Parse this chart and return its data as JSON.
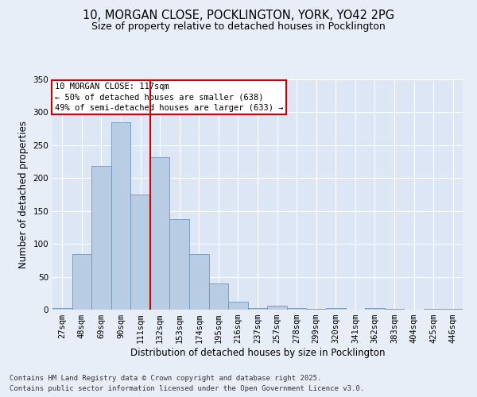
{
  "title_line1": "10, MORGAN CLOSE, POCKLINGTON, YORK, YO42 2PG",
  "title_line2": "Size of property relative to detached houses in Pocklington",
  "categories": [
    "27sqm",
    "48sqm",
    "69sqm",
    "90sqm",
    "111sqm",
    "132sqm",
    "153sqm",
    "174sqm",
    "195sqm",
    "216sqm",
    "237sqm",
    "257sqm",
    "278sqm",
    "299sqm",
    "320sqm",
    "341sqm",
    "362sqm",
    "383sqm",
    "404sqm",
    "425sqm",
    "446sqm"
  ],
  "values": [
    2,
    85,
    218,
    285,
    175,
    232,
    138,
    85,
    40,
    12,
    2,
    6,
    2,
    1,
    2,
    0,
    3,
    1,
    0,
    1,
    1
  ],
  "bar_color": "#b8cce4",
  "bar_edge_color": "#7096bb",
  "vline_x": 4.5,
  "vline_color": "#cc0000",
  "annotation_text": "10 MORGAN CLOSE: 117sqm\n← 50% of detached houses are smaller (638)\n49% of semi-detached houses are larger (633) →",
  "annotation_box_color": "#ffffff",
  "annotation_box_edge": "#cc0000",
  "xlabel": "Distribution of detached houses by size in Pocklington",
  "ylabel": "Number of detached properties",
  "footer_line1": "Contains HM Land Registry data © Crown copyright and database right 2025.",
  "footer_line2": "Contains public sector information licensed under the Open Government Licence v3.0.",
  "bg_color": "#e8eef7",
  "plot_bg_color": "#dce6f5",
  "grid_color": "#ffffff",
  "ylim": [
    0,
    350
  ],
  "yticks": [
    0,
    50,
    100,
    150,
    200,
    250,
    300,
    350
  ],
  "title_fontsize": 10.5,
  "subtitle_fontsize": 9,
  "axis_label_fontsize": 8.5,
  "tick_fontsize": 7.5,
  "footer_fontsize": 6.5,
  "annot_fontsize": 7.5
}
